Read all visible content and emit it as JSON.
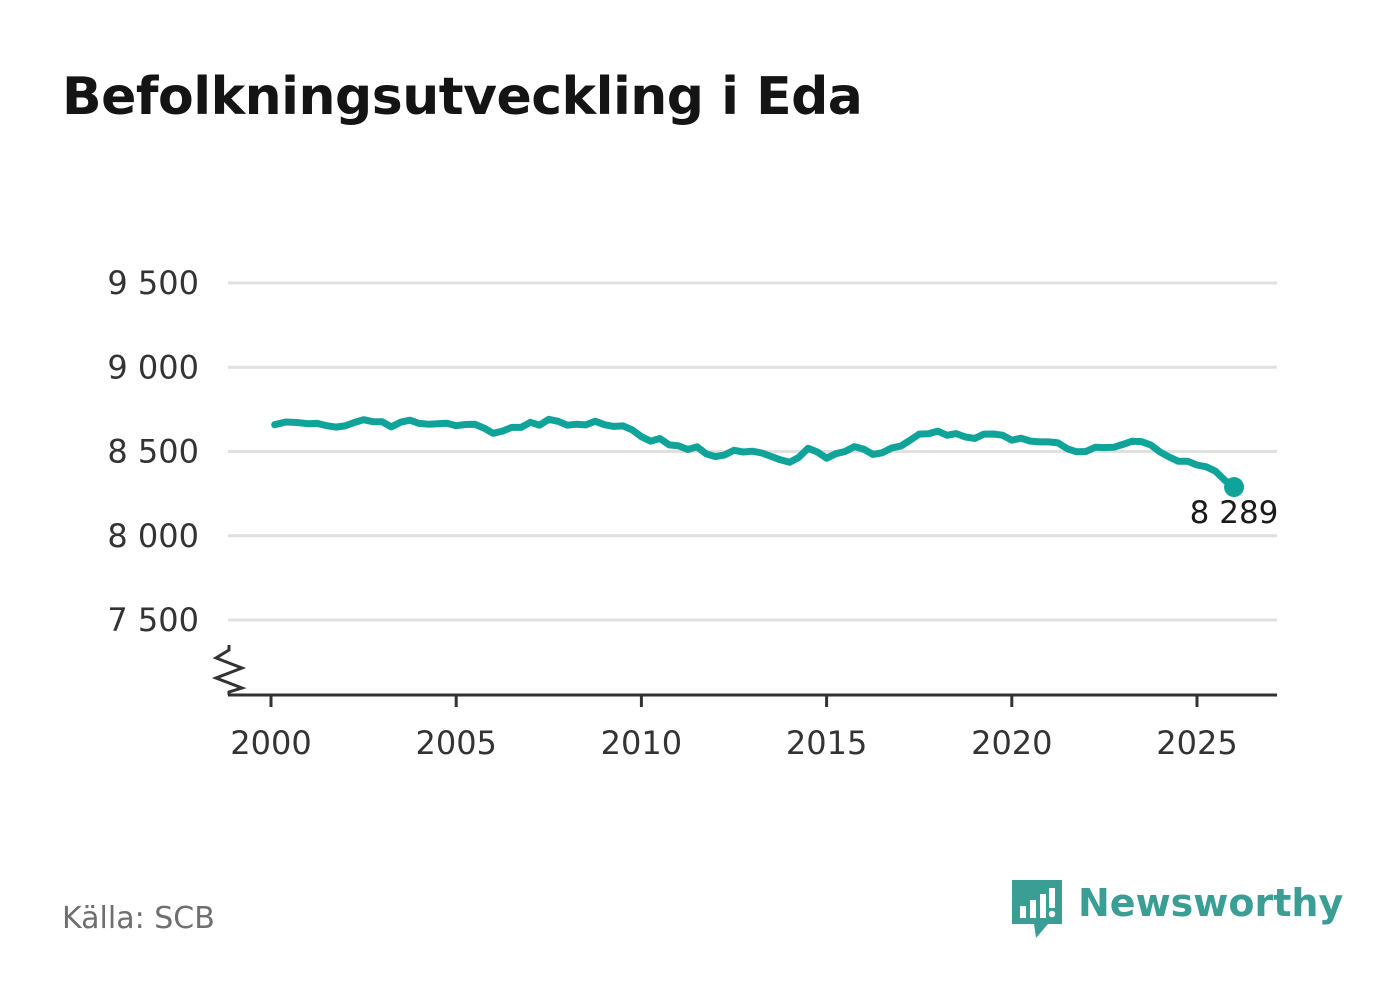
{
  "title": "Befolkningsutveckling i Eda",
  "source": "Källa: SCB",
  "brand": {
    "name": "Newsworthy",
    "icon": "bar-chart-speech-bubble-icon",
    "color": "#3a9e95"
  },
  "colors": {
    "line": "#10a39a",
    "grid": "#e0e0e0",
    "axis": "#333333",
    "tick_text": "#333333"
  },
  "chart_data": {
    "type": "line",
    "title": "Befolkningsutveckling i Eda",
    "xlabel": "",
    "ylabel": "",
    "xlim": [
      1999.6,
      2027.2
    ],
    "ylim": [
      7050,
      9500
    ],
    "xticks": [
      2000,
      2005,
      2010,
      2015,
      2020,
      2025
    ],
    "x_tick_labels": [
      "2000",
      "2005",
      "2010",
      "2015",
      "2020",
      "2025"
    ],
    "yticks": [
      7500,
      8000,
      8500,
      9000,
      9500
    ],
    "y_tick_labels": [
      "7 500",
      "8 000",
      "8 500",
      "9 000",
      "9 500"
    ],
    "y_axis_break": true,
    "grid": "horizontal",
    "legend": "none",
    "last_value_label": "8 289",
    "series": [
      {
        "values": [
          [
            2000.1,
            8659
          ],
          [
            2000.4,
            8675
          ],
          [
            2000.7,
            8672
          ],
          [
            2001.0,
            8665
          ],
          [
            2001.25,
            8667
          ],
          [
            2001.5,
            8653
          ],
          [
            2001.75,
            8645
          ],
          [
            2002.0,
            8652
          ],
          [
            2002.25,
            8672
          ],
          [
            2002.5,
            8689
          ],
          [
            2002.75,
            8677
          ],
          [
            2003.0,
            8677
          ],
          [
            2003.25,
            8646
          ],
          [
            2003.5,
            8674
          ],
          [
            2003.75,
            8686
          ],
          [
            2004.0,
            8667
          ],
          [
            2004.25,
            8662
          ],
          [
            2004.5,
            8665
          ],
          [
            2004.75,
            8668
          ],
          [
            2005.0,
            8653
          ],
          [
            2005.25,
            8660
          ],
          [
            2005.5,
            8662
          ],
          [
            2005.75,
            8639
          ],
          [
            2006.0,
            8608
          ],
          [
            2006.25,
            8621
          ],
          [
            2006.5,
            8643
          ],
          [
            2006.75,
            8643
          ],
          [
            2007.0,
            8673
          ],
          [
            2007.25,
            8656
          ],
          [
            2007.5,
            8691
          ],
          [
            2007.75,
            8679
          ],
          [
            2008.0,
            8656
          ],
          [
            2008.25,
            8662
          ],
          [
            2008.5,
            8658
          ],
          [
            2008.75,
            8680
          ],
          [
            2009.0,
            8659
          ],
          [
            2009.25,
            8649
          ],
          [
            2009.5,
            8652
          ],
          [
            2009.75,
            8629
          ],
          [
            2010.0,
            8588
          ],
          [
            2010.25,
            8561
          ],
          [
            2010.5,
            8577
          ],
          [
            2010.75,
            8539
          ],
          [
            2011.0,
            8534
          ],
          [
            2011.25,
            8512
          ],
          [
            2011.5,
            8528
          ],
          [
            2011.75,
            8486
          ],
          [
            2012.0,
            8470
          ],
          [
            2012.25,
            8480
          ],
          [
            2012.5,
            8507
          ],
          [
            2012.75,
            8497
          ],
          [
            2013.0,
            8502
          ],
          [
            2013.25,
            8491
          ],
          [
            2013.5,
            8471
          ],
          [
            2013.75,
            8451
          ],
          [
            2014.0,
            8436
          ],
          [
            2014.25,
            8465
          ],
          [
            2014.5,
            8519
          ],
          [
            2014.75,
            8497
          ],
          [
            2015.0,
            8460
          ],
          [
            2015.25,
            8487
          ],
          [
            2015.5,
            8500
          ],
          [
            2015.75,
            8529
          ],
          [
            2016.0,
            8514
          ],
          [
            2016.25,
            8483
          ],
          [
            2016.5,
            8492
          ],
          [
            2016.75,
            8520
          ],
          [
            2017.0,
            8532
          ],
          [
            2017.25,
            8566
          ],
          [
            2017.5,
            8603
          ],
          [
            2017.75,
            8605
          ],
          [
            2018.0,
            8621
          ],
          [
            2018.25,
            8596
          ],
          [
            2018.5,
            8606
          ],
          [
            2018.75,
            8586
          ],
          [
            2019.0,
            8578
          ],
          [
            2019.25,
            8603
          ],
          [
            2019.5,
            8604
          ],
          [
            2019.75,
            8597
          ],
          [
            2020.0,
            8567
          ],
          [
            2020.25,
            8579
          ],
          [
            2020.5,
            8562
          ],
          [
            2020.75,
            8557
          ],
          [
            2021.0,
            8557
          ],
          [
            2021.25,
            8551
          ],
          [
            2021.5,
            8516
          ],
          [
            2021.75,
            8498
          ],
          [
            2022.0,
            8500
          ],
          [
            2022.25,
            8525
          ],
          [
            2022.5,
            8523
          ],
          [
            2022.75,
            8525
          ],
          [
            2023.0,
            8542
          ],
          [
            2023.25,
            8561
          ],
          [
            2023.5,
            8559
          ],
          [
            2023.75,
            8539
          ],
          [
            2024.0,
            8497
          ],
          [
            2024.25,
            8467
          ],
          [
            2024.5,
            8442
          ],
          [
            2024.75,
            8442
          ],
          [
            2025.0,
            8420
          ],
          [
            2025.25,
            8409
          ],
          [
            2025.5,
            8383
          ],
          [
            2025.75,
            8329
          ],
          [
            2026.0,
            8289
          ]
        ]
      }
    ]
  }
}
